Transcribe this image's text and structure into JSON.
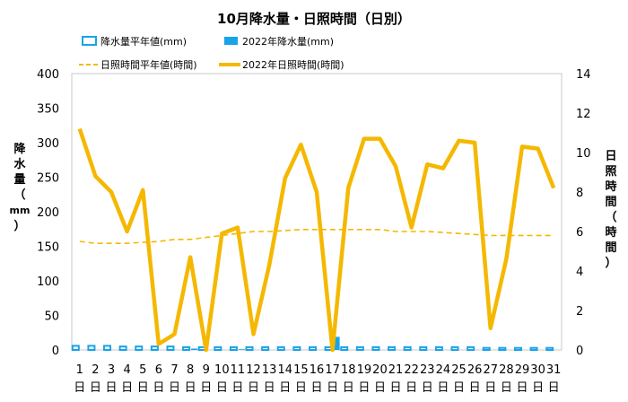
{
  "chart_data": {
    "type": "bar+line",
    "title": "10月降水量・日照時間（日別）",
    "ylabel_left": [
      "降",
      "水",
      "量",
      "（",
      "mm",
      "）"
    ],
    "ylabel_right": [
      "日",
      "照",
      "時",
      "間",
      "（",
      "時",
      "間",
      "）"
    ],
    "ylim_left": [
      0,
      400
    ],
    "yticks_left": [
      0,
      50,
      100,
      150,
      200,
      250,
      300,
      350,
      400
    ],
    "ylim_right": [
      0,
      14
    ],
    "yticks_right": [
      0,
      2,
      4,
      6,
      8,
      10,
      12,
      14
    ],
    "categories": [
      "1",
      "2",
      "3",
      "4",
      "5",
      "6",
      "7",
      "8",
      "9",
      "10",
      "11",
      "12",
      "13",
      "14",
      "15",
      "16",
      "17",
      "18",
      "19",
      "20",
      "21",
      "22",
      "23",
      "24",
      "25",
      "26",
      "27",
      "28",
      "29",
      "30",
      "31"
    ],
    "day_suffix": "日",
    "legend": {
      "precip_normal": "降水量平年値(mm)",
      "precip_2022": "2022年降水量(mm)",
      "sun_normal": "日照時間平年値(時間)",
      "sun_2022": "2022年日照時間(時間)"
    },
    "series": [
      {
        "name": "降水量平年値(mm)",
        "kind": "bar-outline",
        "axis": "left",
        "color": "#1aa3e8",
        "values": [
          6,
          6,
          6,
          5,
          5,
          5,
          5,
          4,
          4,
          4,
          4,
          4,
          4,
          4,
          4,
          4,
          4,
          4,
          4,
          4,
          4,
          4,
          4,
          4,
          4,
          4,
          3,
          3,
          3,
          3,
          3
        ]
      },
      {
        "name": "2022年降水量(mm)",
        "kind": "bar-fill",
        "axis": "left",
        "color": "#1aa3e8",
        "values": [
          0,
          0,
          0,
          0,
          0,
          0,
          0,
          2,
          0,
          0,
          1,
          0,
          0,
          0,
          0,
          0,
          19,
          0,
          0,
          0,
          0,
          0,
          0,
          0,
          0,
          0,
          0,
          0,
          0,
          0,
          0
        ]
      },
      {
        "name": "日照時間平年値(時間)",
        "kind": "line-dashed",
        "axis": "right",
        "color": "#f5b800",
        "values": [
          5.5,
          5.4,
          5.4,
          5.4,
          5.45,
          5.5,
          5.6,
          5.6,
          5.7,
          5.8,
          5.9,
          6.0,
          6.0,
          6.05,
          6.1,
          6.1,
          6.1,
          6.1,
          6.1,
          6.1,
          6.0,
          6.0,
          6.0,
          5.95,
          5.9,
          5.85,
          5.8,
          5.8,
          5.8,
          5.8,
          5.8
        ]
      },
      {
        "name": "2022年日照時間(時間)",
        "kind": "line",
        "axis": "right",
        "color": "#f5b800",
        "values": [
          11.2,
          8.8,
          8.0,
          6.0,
          8.1,
          0.3,
          0.8,
          4.7,
          0.0,
          5.9,
          6.2,
          0.8,
          4.3,
          8.7,
          10.4,
          8.0,
          0.0,
          8.2,
          10.7,
          10.7,
          9.3,
          6.2,
          9.4,
          9.2,
          10.6,
          10.5,
          1.1,
          4.6,
          10.3,
          10.2,
          8.2
        ]
      }
    ]
  }
}
